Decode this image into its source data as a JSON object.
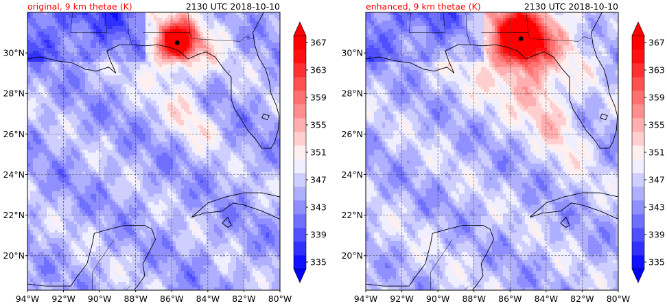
{
  "chart_data": [
    {
      "type": "heatmap",
      "title_left": "original, 9 km thetae (K)",
      "title_right": "2130 UTC 2018-10-10",
      "xlabel": "",
      "ylabel": "",
      "x_ticks": [
        "94°W",
        "92°W",
        "90°W",
        "88°W",
        "86°W",
        "84°W",
        "82°W",
        "80°W"
      ],
      "y_ticks": [
        "20°N",
        "22°N",
        "24°N",
        "26°N",
        "28°N",
        "30°N"
      ],
      "xlim": [
        -94,
        -80
      ],
      "ylim": [
        18.3,
        32.0
      ],
      "center_marker": {
        "lon": -85.7,
        "lat": 30.5
      },
      "colorbar_levels": [
        335,
        337,
        339,
        341,
        343,
        345,
        347,
        349,
        351,
        353,
        355,
        357,
        359,
        361,
        363,
        365,
        367,
        369
      ],
      "colorbar_tick_labels": [
        "335",
        "339",
        "343",
        "347",
        "351",
        "355",
        "359",
        "363",
        "367"
      ],
      "grid": true
    },
    {
      "type": "heatmap",
      "title_left": "enhanced, 9 km thetae (K)",
      "title_right": "2130 UTC 2018-10-10",
      "xlabel": "",
      "ylabel": "",
      "x_ticks": [
        "94°W",
        "92°W",
        "90°W",
        "88°W",
        "86°W",
        "84°W",
        "82°W",
        "80°W"
      ],
      "y_ticks": [
        "20°N",
        "22°N",
        "24°N",
        "26°N",
        "28°N",
        "30°N"
      ],
      "xlim": [
        -94,
        -80
      ],
      "ylim": [
        18.3,
        32.0
      ],
      "center_marker": {
        "lon": -85.4,
        "lat": 30.7
      },
      "colorbar_levels": [
        335,
        337,
        339,
        341,
        343,
        345,
        347,
        349,
        351,
        353,
        355,
        357,
        359,
        361,
        363,
        365,
        367,
        369
      ],
      "colorbar_tick_labels": [
        "335",
        "339",
        "343",
        "347",
        "351",
        "355",
        "359",
        "363",
        "367"
      ],
      "grid": true
    }
  ]
}
